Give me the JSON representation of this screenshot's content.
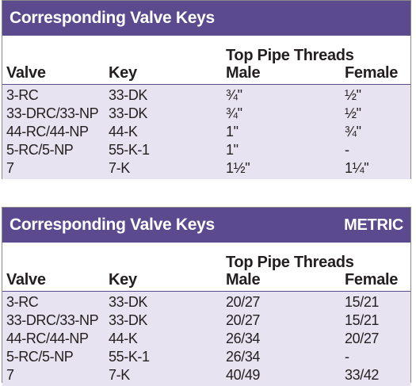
{
  "imperial": {
    "title": "Corresponding Valve Keys",
    "badge": "",
    "headers": {
      "valve": "Valve",
      "key": "Key",
      "group": "Top Pipe Threads",
      "male": "Male",
      "female": "Female"
    },
    "rows": [
      {
        "valve": "3-RC",
        "key": "33-DK",
        "male": "¾\"",
        "female": "½\""
      },
      {
        "valve": "33-DRC/33-NP",
        "key": "33-DK",
        "male": "¾\"",
        "female": "½\""
      },
      {
        "valve": "44-RC/44-NP",
        "key": "44-K",
        "male": "1\"",
        "female": "¾\""
      },
      {
        "valve": "5-RC/5-NP",
        "key": "55-K-1",
        "male": "1\"",
        "female": "-"
      },
      {
        "valve": "7",
        "key": "7-K",
        "male": "1½\"",
        "female": "1¼\""
      }
    ]
  },
  "metric": {
    "title": "Corresponding Valve Keys",
    "badge": "METRIC",
    "headers": {
      "valve": "Valve",
      "key": "Key",
      "group": "Top Pipe Threads",
      "male": "Male",
      "female": "Female"
    },
    "rows": [
      {
        "valve": "3-RC",
        "key": "33-DK",
        "male": "20/27",
        "female": "15/21"
      },
      {
        "valve": "33-DRC/33-NP",
        "key": "33-DK",
        "male": "20/27",
        "female": "15/21"
      },
      {
        "valve": "44-RC/44-NP",
        "key": "44-K",
        "male": "26/34",
        "female": "20/27"
      },
      {
        "valve": "5-RC/5-NP",
        "key": "55-K-1",
        "male": "26/34",
        "female": "-"
      },
      {
        "valve": "7",
        "key": "7-K",
        "male": "40/49",
        "female": "33/42"
      }
    ]
  },
  "colors": {
    "header_bg": "#5b4a8e",
    "row_bg": "#e7e3f0",
    "text": "#231f20"
  }
}
